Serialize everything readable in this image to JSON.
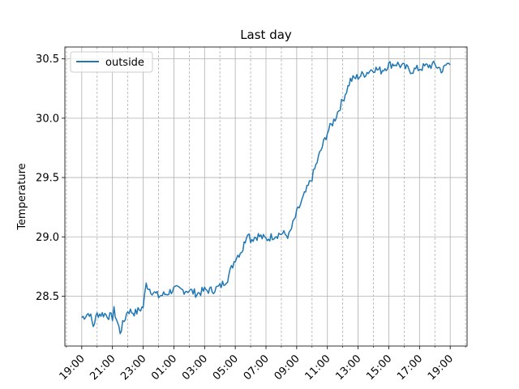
{
  "chart_data": {
    "type": "line",
    "title": "Last day",
    "xlabel": "",
    "ylabel": "Temperature",
    "ylim": [
      28.08,
      30.6
    ],
    "xlim_hours": [
      17.9,
      44.1
    ],
    "x_tick_labels": [
      "19:00",
      "21:00",
      "23:00",
      "01:00",
      "03:00",
      "05:00",
      "07:00",
      "09:00",
      "11:00",
      "13:00",
      "15:00",
      "17:00",
      "19:00"
    ],
    "x_tick_hours": [
      19,
      21,
      23,
      25,
      27,
      29,
      31,
      33,
      35,
      37,
      39,
      41,
      43
    ],
    "y_ticks": [
      28.5,
      29.0,
      29.5,
      30.0,
      30.5
    ],
    "y_tick_labels": [
      "28.5",
      "29.0",
      "29.5",
      "30.0",
      "30.5"
    ],
    "grid": true,
    "legend_position": "upper-left",
    "series": [
      {
        "name": "outside",
        "color": "#1f77b4",
        "x_hours": [
          19.0,
          19.5,
          19.75,
          20.0,
          20.5,
          21.0,
          21.1,
          21.5,
          22.0,
          22.5,
          23.0,
          23.2,
          23.5,
          24.0,
          24.5,
          25.0,
          25.5,
          26.0,
          26.5,
          27.0,
          27.5,
          28.0,
          28.5,
          29.0,
          29.5,
          29.8,
          30.0,
          30.5,
          31.0,
          31.5,
          32.0,
          32.5,
          33.0,
          33.5,
          34.0,
          34.5,
          35.0,
          35.5,
          36.0,
          36.5,
          37.0,
          37.5,
          38.0,
          38.5,
          39.0,
          39.5,
          40.0,
          40.5,
          41.0,
          41.5,
          42.0,
          42.5,
          42.8,
          43.0
        ],
        "values": [
          28.32,
          28.36,
          28.25,
          28.35,
          28.35,
          28.32,
          28.38,
          28.2,
          28.38,
          28.36,
          28.41,
          28.6,
          28.55,
          28.5,
          28.52,
          28.56,
          28.55,
          28.55,
          28.52,
          28.55,
          28.55,
          28.58,
          28.65,
          28.82,
          28.9,
          29.05,
          28.98,
          29.01,
          28.98,
          29.01,
          29.03,
          29.01,
          29.2,
          29.35,
          29.5,
          29.7,
          29.88,
          30.0,
          30.15,
          30.32,
          30.35,
          30.38,
          30.42,
          30.4,
          30.45,
          30.46,
          30.43,
          30.4,
          30.42,
          30.44,
          30.45,
          30.4,
          30.46,
          30.45
        ]
      }
    ]
  }
}
